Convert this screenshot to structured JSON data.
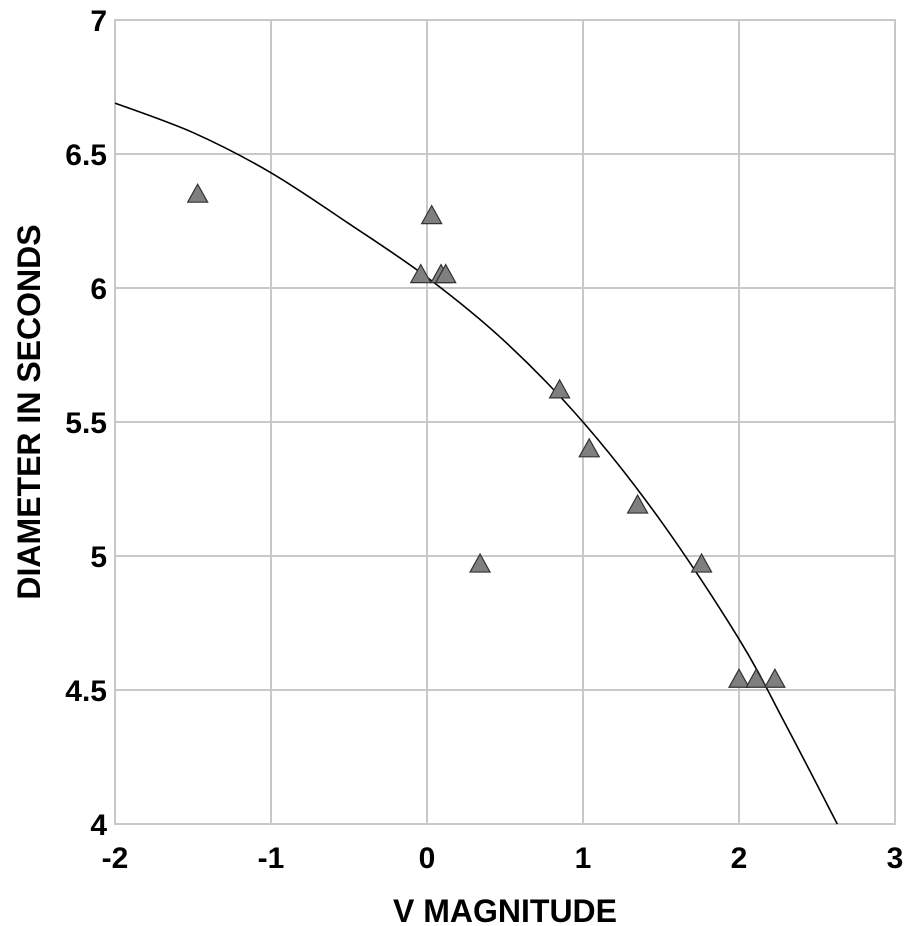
{
  "chart_data": {
    "type": "scatter",
    "xlabel": "V MAGNITUDE",
    "ylabel": "DIAMETER IN SECONDS",
    "xlim": [
      -2,
      3
    ],
    "ylim": [
      4,
      7
    ],
    "xticks": [
      "-2",
      "-1",
      "0",
      "1",
      "2",
      "3"
    ],
    "yticks": [
      "4",
      "4.5",
      "5",
      "5.5",
      "6",
      "6.5",
      "7"
    ],
    "grid": true,
    "marker": "triangle",
    "marker_color": "#7f7f7f",
    "series": [
      {
        "points": [
          {
            "x": -1.47,
            "y": 6.35
          },
          {
            "x": -0.04,
            "y": 6.05
          },
          {
            "x": 0.03,
            "y": 6.27
          },
          {
            "x": 0.09,
            "y": 6.05
          },
          {
            "x": 0.12,
            "y": 6.05
          },
          {
            "x": 0.34,
            "y": 4.97
          },
          {
            "x": 0.85,
            "y": 5.62
          },
          {
            "x": 1.04,
            "y": 5.4
          },
          {
            "x": 1.35,
            "y": 5.19
          },
          {
            "x": 1.76,
            "y": 4.97
          },
          {
            "x": 2.0,
            "y": 4.54
          },
          {
            "x": 2.11,
            "y": 4.54
          },
          {
            "x": 2.23,
            "y": 4.54
          }
        ]
      }
    ],
    "fit_curve": {
      "color": "#000000",
      "points": [
        {
          "x": -2.0,
          "y": 6.69
        },
        {
          "x": -1.5,
          "y": 6.58
        },
        {
          "x": -1.0,
          "y": 6.43
        },
        {
          "x": -0.5,
          "y": 6.24
        },
        {
          "x": 0.0,
          "y": 6.04
        },
        {
          "x": 0.5,
          "y": 5.8
        },
        {
          "x": 1.0,
          "y": 5.5
        },
        {
          "x": 1.5,
          "y": 5.13
        },
        {
          "x": 2.0,
          "y": 4.69
        },
        {
          "x": 2.3,
          "y": 4.37
        },
        {
          "x": 2.63,
          "y": 4.0
        }
      ]
    }
  }
}
